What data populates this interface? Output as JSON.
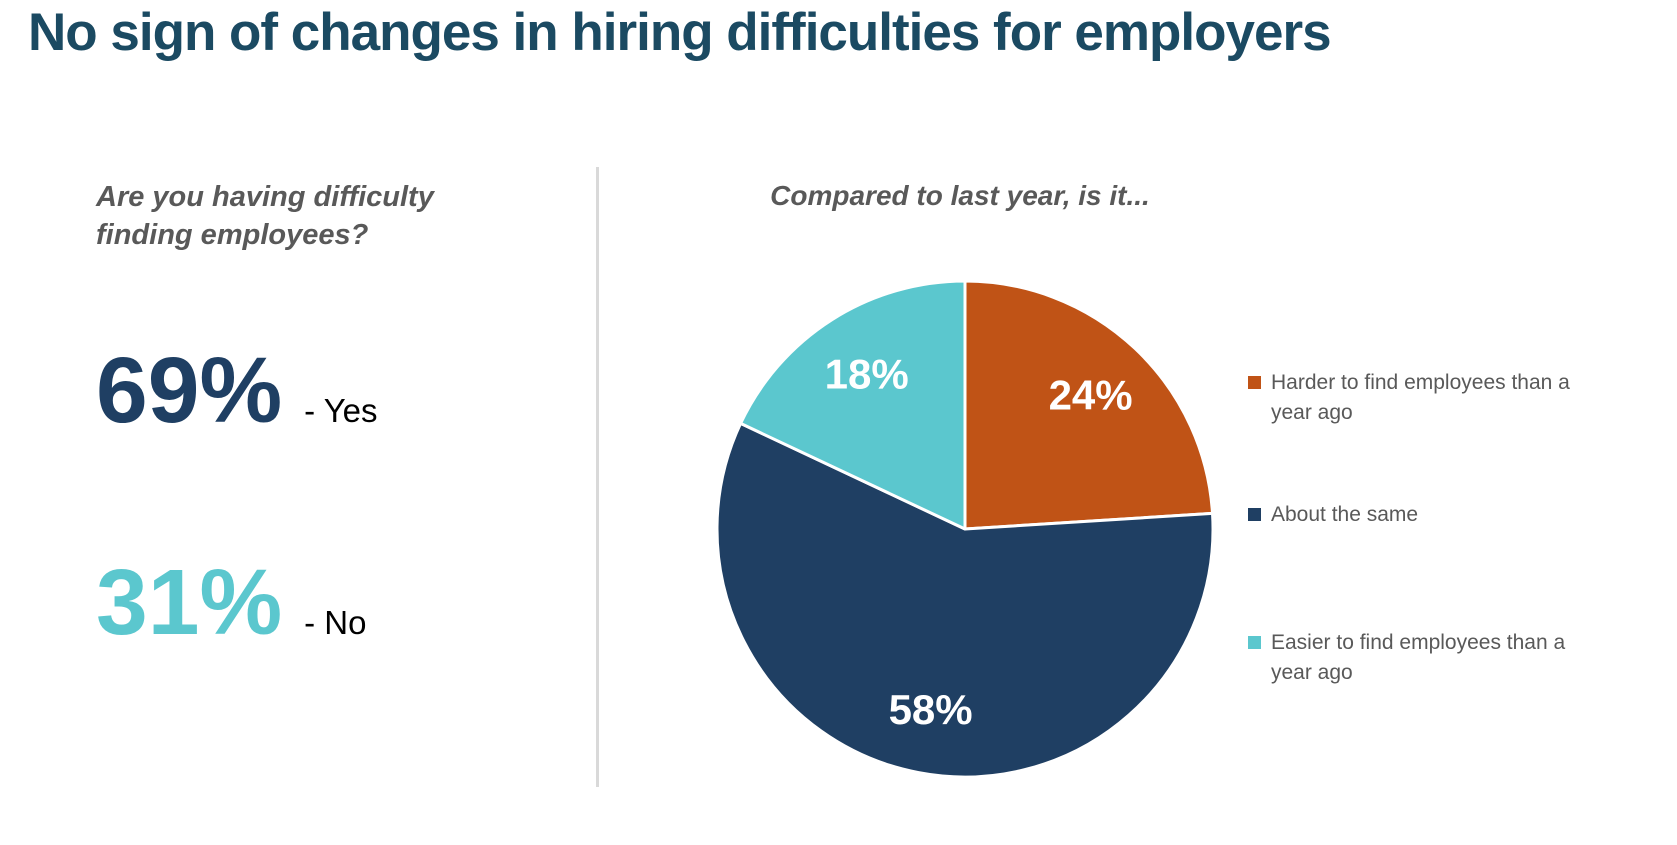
{
  "title": "No sign of changes in hiring difficulties for employers",
  "colors": {
    "title": "#1B4A62",
    "question_text": "#595959",
    "divider": "#D9D9D9",
    "navy": "#1F3F63",
    "teal": "#5BC7CE",
    "orange": "#C05316",
    "data_label": "#FFFFFF"
  },
  "left_panel": {
    "question": "Are you having difficulty finding employees?",
    "stats": [
      {
        "value": "69%",
        "label": "- Yes",
        "color": "#1F3F63"
      },
      {
        "value": "31%",
        "label": "- No",
        "color": "#5BC7CE"
      }
    ]
  },
  "chart_data": {
    "type": "pie",
    "title": "Compared to last year, is it...",
    "categories": [
      "Harder to find employees than a year ago",
      "About the same",
      "Easier to find employees than a year ago"
    ],
    "values": [
      24,
      58,
      18
    ],
    "value_labels": [
      "24%",
      "58%",
      "18%"
    ],
    "colors": [
      "#C05316",
      "#1F3F63",
      "#5BC7CE"
    ],
    "start_angle_deg": 0,
    "direction": "clockwise",
    "legend_position": "right",
    "data_labels": "inside",
    "data_label_color": "#FFFFFF"
  }
}
